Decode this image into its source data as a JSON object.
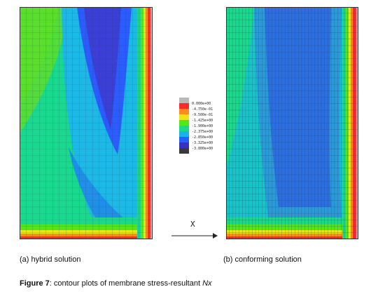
{
  "legend": {
    "values": [
      "0.000e+00",
      "-4.750e-01",
      "-9.500e-01",
      "-1.425e+00",
      "-1.900e+00",
      "-2.375e+00",
      "-2.850e+00",
      "-3.325e+00",
      "-3.800e+00"
    ],
    "colors": [
      "#b9b9b9",
      "#ff2a2a",
      "#ff8c1a",
      "#e6e619",
      "#54e61a",
      "#1ad98c",
      "#19b3e6",
      "#2a5cff",
      "#3333bb",
      "#3a3a3a"
    ]
  },
  "axis": {
    "label": "X"
  },
  "panels": {
    "a": {
      "caption": "(a) hybrid solution"
    },
    "b": {
      "caption": "(b) conforming solution"
    }
  },
  "figure": {
    "label": "Figure 7",
    "text": ": contour plots of membrane stress-resultant ",
    "symbol": "Nx"
  }
}
